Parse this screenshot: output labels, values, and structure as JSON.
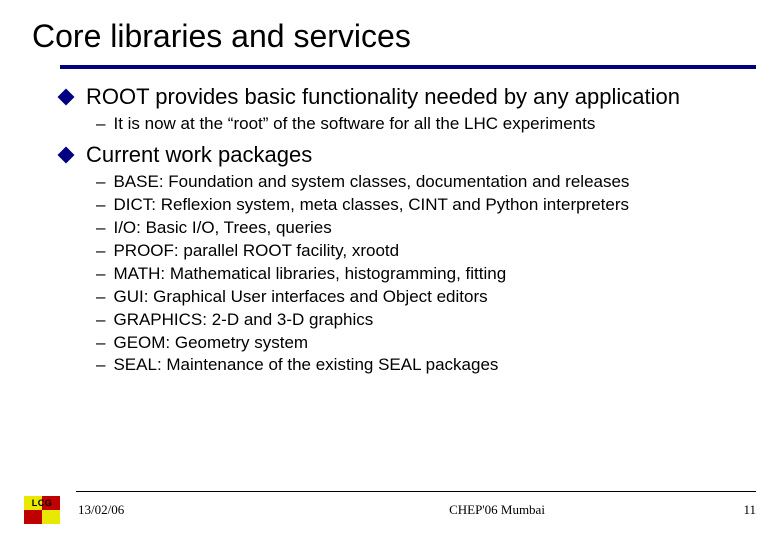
{
  "colors": {
    "rule": "#000080",
    "diamond": "#000080",
    "text": "#000000",
    "background": "#ffffff",
    "logo_yellow": "#e8e800",
    "logo_red": "#c00000"
  },
  "title": "Core libraries and services",
  "bullets": [
    {
      "text": "ROOT provides basic functionality needed by any application",
      "subs": [
        "It is now at the “root” of the software for all the LHC experiments"
      ]
    },
    {
      "text": "Current work packages",
      "subs": [
        "BASE: Foundation and system classes, documentation and releases",
        "DICT: Reflexion system, meta classes, CINT and Python interpreters",
        "I/O: Basic I/O, Trees, queries",
        "PROOF: parallel ROOT facility, xrootd",
        "MATH: Mathematical libraries, histogramming, fitting",
        "GUI: Graphical User interfaces and Object editors",
        "GRAPHICS: 2-D and 3-D graphics",
        "GEOM: Geometry system",
        "SEAL: Maintenance of the existing SEAL packages"
      ]
    }
  ],
  "footer": {
    "logo_text": "LCG",
    "date": "13/02/06",
    "center": "CHEP'06 Mumbai",
    "page": "11"
  }
}
